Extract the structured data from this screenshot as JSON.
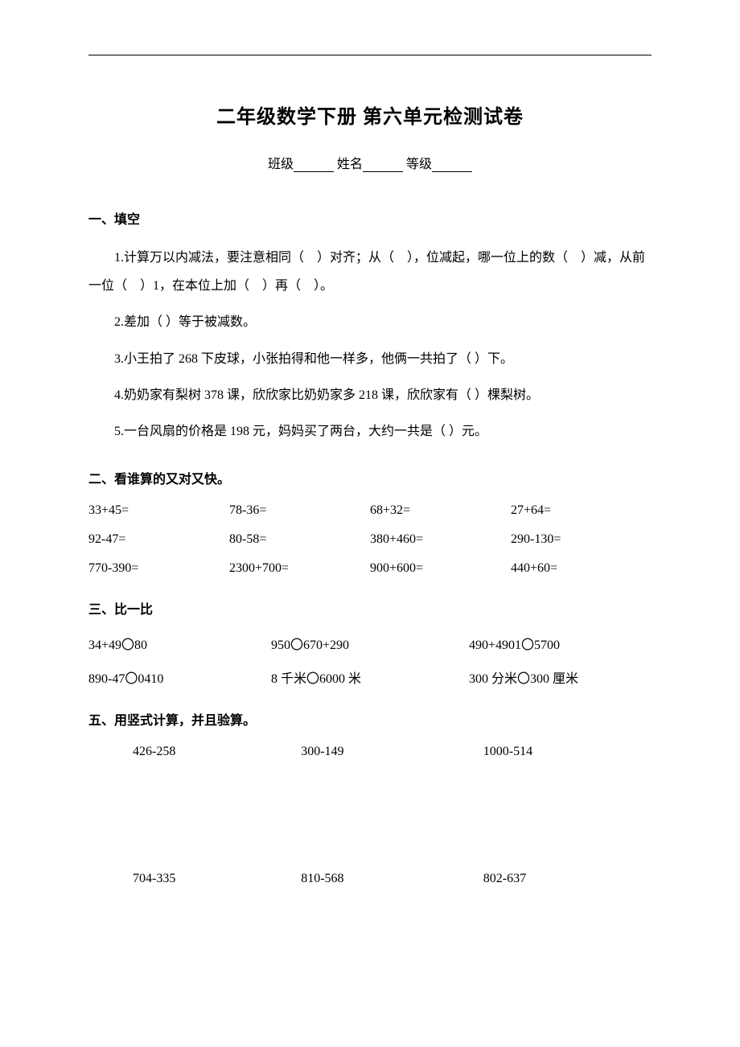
{
  "page": {
    "title": "二年级数学下册 第六单元检测试卷",
    "header": {
      "class_label": "班级",
      "name_label": "姓名",
      "grade_label": "等级"
    }
  },
  "section1": {
    "heading": "一、填空",
    "q1": "1.计算万以内减法，要注意相同（　）对齐；从（　），位减起，哪一位上的数（　）减，从前一位（　）1，在本位上加（　）再（　）。",
    "q2": "2.差加（ ）等于被减数。",
    "q3": "3.小王拍了 268 下皮球，小张拍得和他一样多，他俩一共拍了（ ）下。",
    "q4": "4.奶奶家有梨树 378 课，欣欣家比奶奶家多 218 课，欣欣家有（ ）棵梨树。",
    "q5": "5.一台风扇的价格是 198 元，妈妈买了两台，大约一共是（ ）元。"
  },
  "section2": {
    "heading": "二、看谁算的又对又快。",
    "rows": [
      [
        "33+45=",
        "78-36=",
        "68+32=",
        "27+64="
      ],
      [
        "92-47=",
        "80-58=",
        "380+460=",
        "290-130="
      ],
      [
        "770-390=",
        "2300+700=",
        "900+600=",
        "440+60="
      ]
    ]
  },
  "section3": {
    "heading": "三、比一比",
    "rows": [
      [
        "34+49〇80",
        "950〇670+290",
        "490+4901〇5700"
      ],
      [
        "890-47〇0410",
        "8 千米〇6000 米",
        "300 分米〇300 厘米"
      ]
    ]
  },
  "section5": {
    "heading": "五、用竖式计算，并且验算。",
    "rows": [
      [
        "426-258",
        "300-149",
        "1000-514"
      ],
      [
        "704-335",
        "810-568",
        "802-637"
      ]
    ]
  },
  "style": {
    "background_color": "#ffffff",
    "text_color": "#000000",
    "font_family": "SimSun",
    "title_fontsize": 24,
    "body_fontsize": 16
  }
}
